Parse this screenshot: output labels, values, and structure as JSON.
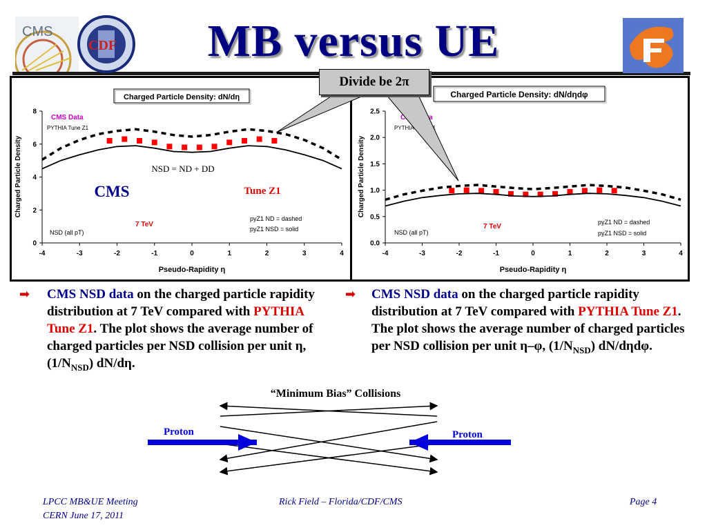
{
  "slide": {
    "title": "MB versus UE",
    "callout": "Divide be 2π",
    "logos": {
      "left": [
        "cms-logo",
        "cdf-logo"
      ],
      "right": [
        "florida-logo"
      ],
      "cms_text": "CMS",
      "cdf_text": "CDF"
    }
  },
  "chart_data": [
    {
      "type": "scatter",
      "title": "Charged Particle Density: dN/dη",
      "xlabel": "Pseudo-Rapidity η",
      "ylabel": "Charged Particle Density",
      "xlim": [
        -4,
        4
      ],
      "ylim": [
        0,
        8
      ],
      "xticks": [
        "-4",
        "-3",
        "-2",
        "-1",
        "0",
        "1",
        "2",
        "3",
        "4"
      ],
      "yticks": [
        "0",
        "2",
        "4",
        "6",
        "8"
      ],
      "series": [
        {
          "name": "CMS Data",
          "kind": "points",
          "color": "#ff0000",
          "x": [
            -2.2,
            -1.8,
            -1.4,
            -1.0,
            -0.6,
            -0.2,
            0.2,
            0.6,
            1.0,
            1.4,
            1.8,
            2.2
          ],
          "y": [
            6.2,
            6.3,
            6.2,
            6.1,
            5.85,
            5.8,
            5.8,
            5.85,
            6.1,
            6.2,
            6.3,
            6.2
          ]
        },
        {
          "name": "pyZ1 ND",
          "kind": "dashed",
          "color": "#000000",
          "x": [
            -4.0,
            -3.5,
            -3.0,
            -2.5,
            -2.0,
            -1.5,
            -1.0,
            -0.5,
            0.0,
            0.5,
            1.0,
            1.5,
            2.0,
            2.5,
            3.0,
            3.5,
            4.0
          ],
          "y": [
            5.05,
            5.75,
            6.25,
            6.6,
            6.8,
            6.9,
            6.75,
            6.55,
            6.45,
            6.55,
            6.75,
            6.9,
            6.8,
            6.6,
            6.25,
            5.75,
            5.05
          ]
        },
        {
          "name": "pyZ1 NSD",
          "kind": "solid",
          "color": "#000000",
          "x": [
            -4.0,
            -3.5,
            -3.0,
            -2.5,
            -2.0,
            -1.5,
            -1.0,
            -0.5,
            0.0,
            0.5,
            1.0,
            1.5,
            2.0,
            2.5,
            3.0,
            3.5,
            4.0
          ],
          "y": [
            4.5,
            5.0,
            5.35,
            5.65,
            5.85,
            5.9,
            5.75,
            5.55,
            5.5,
            5.55,
            5.75,
            5.9,
            5.85,
            5.65,
            5.35,
            5.0,
            4.5
          ]
        }
      ],
      "annotations": {
        "legend_data": "CMS Data",
        "legend_model": "PYTHIA Tune Z1",
        "equation": "NSD = ND + DD",
        "experiment": "CMS",
        "tune": "Tune Z1",
        "energy": "7 TeV",
        "selection": "NSD (all pT)",
        "dashed_note": "pyZ1 ND = dashed",
        "solid_note": "pyZ1 NSD = solid"
      }
    },
    {
      "type": "scatter",
      "title": "Charged Particle Density: dN/dηdφ",
      "xlabel": "Pseudo-Rapidity η",
      "ylabel": "Charged Particle Density",
      "xlim": [
        -4,
        4
      ],
      "ylim": [
        0,
        2.5
      ],
      "xticks": [
        "-4",
        "-3",
        "-2",
        "-1",
        "0",
        "1",
        "2",
        "3",
        "4"
      ],
      "yticks": [
        "0.0",
        "0.5",
        "1.0",
        "1.5",
        "2.0",
        "2.5"
      ],
      "series": [
        {
          "name": "CMS Data",
          "kind": "points",
          "color": "#ff0000",
          "x": [
            -2.2,
            -1.8,
            -1.4,
            -1.0,
            -0.6,
            -0.2,
            0.2,
            0.6,
            1.0,
            1.4,
            1.8,
            2.2
          ],
          "y": [
            0.99,
            1.0,
            0.99,
            0.97,
            0.93,
            0.92,
            0.92,
            0.93,
            0.97,
            0.99,
            1.0,
            0.99
          ]
        },
        {
          "name": "pyZ1 ND",
          "kind": "dashed",
          "color": "#000000",
          "x": [
            -4.0,
            -3.5,
            -3.0,
            -2.5,
            -2.0,
            -1.5,
            -1.0,
            -0.5,
            0.0,
            0.5,
            1.0,
            1.5,
            2.0,
            2.5,
            3.0,
            3.5,
            4.0
          ],
          "y": [
            0.82,
            0.92,
            0.99,
            1.05,
            1.08,
            1.1,
            1.07,
            1.04,
            1.02,
            1.04,
            1.07,
            1.1,
            1.08,
            1.05,
            0.99,
            0.92,
            0.82
          ]
        },
        {
          "name": "pyZ1 NSD",
          "kind": "solid",
          "color": "#000000",
          "x": [
            -4.0,
            -3.5,
            -3.0,
            -2.5,
            -2.0,
            -1.5,
            -1.0,
            -0.5,
            0.0,
            0.5,
            1.0,
            1.5,
            2.0,
            2.5,
            3.0,
            3.5,
            4.0
          ],
          "y": [
            0.7,
            0.79,
            0.86,
            0.9,
            0.93,
            0.94,
            0.92,
            0.89,
            0.88,
            0.89,
            0.92,
            0.94,
            0.93,
            0.9,
            0.86,
            0.79,
            0.7
          ]
        }
      ],
      "annotations": {
        "legend_data": "CMS Data",
        "legend_model": "PYTHIA Tune Z1",
        "energy": "7 TeV",
        "selection": "NSD (all pT)",
        "dashed_note": "pyZ1 ND = dashed",
        "solid_note": "pyZ1 NSD = solid"
      }
    }
  ],
  "text_left": {
    "data_label": "CMS NSD data",
    "p1": " on the charged particle rapidity distribution at 7 TeV compared with ",
    "tune": "PYTHIA Tune Z1",
    "p2": ".  The plot shows the average number of charged particles per NSD collision per unit η, (1/N",
    "sub": "NSD",
    "p3": ") dN/dη."
  },
  "text_right": {
    "data_label": "CMS NSD data",
    "p1": " on the charged particle rapidity distribution at 7 TeV compared with ",
    "tune": "PYTHIA Tune Z1",
    "p2": ".  The plot shows the average number of charged particles per NSD collision per unit η–φ, (1/N",
    "sub": "NSD",
    "p3": ") dN/dηdφ."
  },
  "diagram": {
    "title": "“Minimum Bias” Collisions",
    "left_label": "Proton",
    "right_label": "Proton"
  },
  "footer": {
    "left_line1": "LPCC MB&UE Meeting",
    "left_line2": "CERN June 17, 2011",
    "center": "Rick Field – Florida/CDF/CMS",
    "right": "Page 4"
  }
}
